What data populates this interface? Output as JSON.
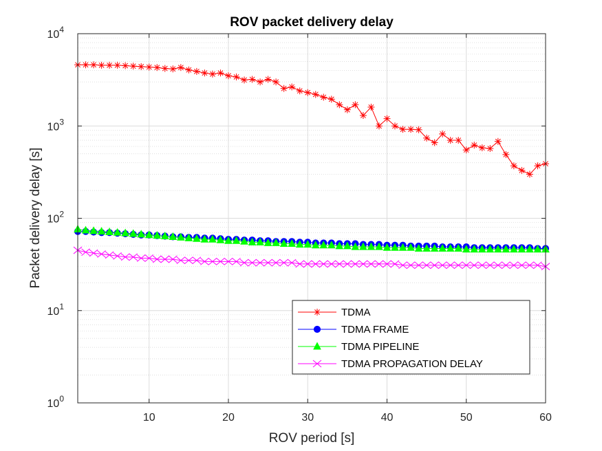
{
  "chart_data": {
    "type": "line",
    "title": "ROV packet delivery delay",
    "xlabel": "ROV period [s]",
    "ylabel": "Packet delivery delay [s]",
    "x": [
      1,
      2,
      3,
      4,
      5,
      6,
      7,
      8,
      9,
      10,
      11,
      12,
      13,
      14,
      15,
      16,
      17,
      18,
      19,
      20,
      21,
      22,
      23,
      24,
      25,
      26,
      27,
      28,
      29,
      30,
      31,
      32,
      33,
      34,
      35,
      36,
      37,
      38,
      39,
      40,
      41,
      42,
      43,
      44,
      45,
      46,
      47,
      48,
      49,
      50,
      51,
      52,
      53,
      54,
      55,
      56,
      57,
      58,
      59,
      60
    ],
    "xlim": [
      1,
      60
    ],
    "ylim": [
      1,
      10000
    ],
    "yscale": "log",
    "xticks": [
      10,
      20,
      30,
      40,
      50,
      60
    ],
    "yticks": [
      {
        "value": 1,
        "base": "10",
        "exp": "0"
      },
      {
        "value": 10,
        "base": "10",
        "exp": "1"
      },
      {
        "value": 100,
        "base": "10",
        "exp": "2"
      },
      {
        "value": 1000,
        "base": "10",
        "exp": "3"
      },
      {
        "value": 10000,
        "base": "10",
        "exp": "4"
      }
    ],
    "grid": true,
    "legend_position": "lower-right",
    "series": [
      {
        "name": "TDMA",
        "color": "#ff0000",
        "marker": "asterisk",
        "values": [
          4600,
          4600,
          4600,
          4550,
          4550,
          4550,
          4500,
          4450,
          4400,
          4350,
          4300,
          4200,
          4150,
          4300,
          4050,
          3900,
          3750,
          3650,
          3750,
          3500,
          3400,
          3150,
          3200,
          3000,
          3200,
          3000,
          2550,
          2650,
          2400,
          2300,
          2200,
          2050,
          1950,
          1700,
          1500,
          1700,
          1300,
          1600,
          1000,
          1200,
          1000,
          920,
          920,
          910,
          740,
          660,
          820,
          700,
          700,
          550,
          620,
          580,
          570,
          680,
          490,
          370,
          330,
          300,
          370,
          390
        ]
      },
      {
        "name": "TDMA FRAME",
        "color": "#0000ff",
        "marker": "circle",
        "values": [
          72,
          72,
          71,
          70,
          70,
          69,
          68,
          67,
          66,
          66,
          65,
          64,
          63,
          63,
          62,
          62,
          61,
          61,
          60,
          59,
          59,
          58,
          58,
          57,
          57,
          56,
          56,
          56,
          55,
          55,
          54,
          54,
          54,
          53,
          53,
          53,
          52,
          52,
          52,
          51,
          51,
          51,
          50,
          50,
          50,
          50,
          49,
          49,
          49,
          49,
          48,
          48,
          48,
          48,
          48,
          48,
          48,
          48,
          47,
          47
        ]
      },
      {
        "name": "TDMA PIPELINE",
        "color": "#00ff00",
        "marker": "triangle",
        "values": [
          76,
          74,
          73,
          72,
          71,
          70,
          69,
          68,
          67,
          66,
          65,
          64,
          63,
          62,
          61,
          60,
          59,
          59,
          58,
          57,
          57,
          56,
          55,
          55,
          54,
          54,
          53,
          53,
          52,
          52,
          51,
          51,
          51,
          50,
          50,
          49,
          49,
          49,
          49,
          48,
          48,
          48,
          48,
          47,
          47,
          47,
          47,
          47,
          47,
          46,
          46,
          46,
          46,
          46,
          46,
          46,
          46,
          46,
          46,
          46
        ]
      },
      {
        "name": "TDMA PROPAGATION DELAY",
        "color": "#ff00ff",
        "marker": "x",
        "values": [
          45,
          43,
          42,
          41,
          40,
          39,
          38,
          38,
          37,
          37,
          36,
          36,
          36,
          35,
          35,
          35,
          34,
          34,
          34,
          34,
          34,
          33,
          33,
          33,
          33,
          33,
          33,
          33,
          32,
          32,
          32,
          32,
          32,
          32,
          32,
          32,
          32,
          32,
          32,
          32,
          32,
          31,
          31,
          31,
          31,
          31,
          31,
          31,
          31,
          31,
          31,
          31,
          31,
          31,
          31,
          31,
          31,
          31,
          31,
          30
        ]
      }
    ]
  }
}
